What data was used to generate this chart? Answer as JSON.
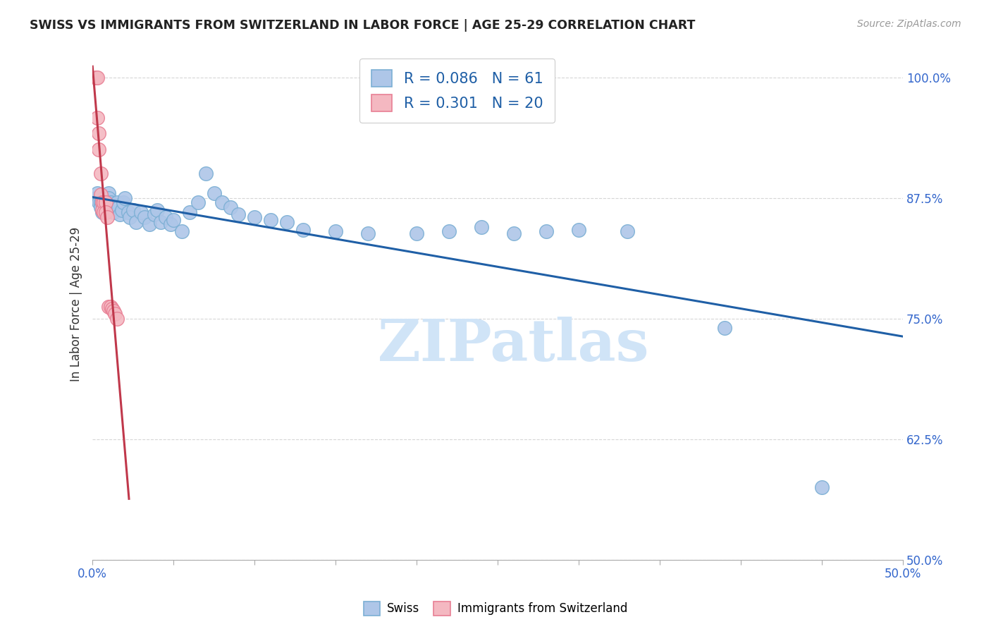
{
  "title": "SWISS VS IMMIGRANTS FROM SWITZERLAND IN LABOR FORCE | AGE 25-29 CORRELATION CHART",
  "source": "Source: ZipAtlas.com",
  "ylabel": "In Labor Force | Age 25-29",
  "xlim": [
    0.0,
    0.5
  ],
  "ylim": [
    0.5,
    1.03
  ],
  "xticks": [
    0.0,
    0.05,
    0.1,
    0.15,
    0.2,
    0.25,
    0.3,
    0.35,
    0.4,
    0.45,
    0.5
  ],
  "xticklabels": [
    "0.0%",
    "",
    "",
    "",
    "",
    "",
    "",
    "",
    "",
    "",
    "50.0%"
  ],
  "yticks": [
    0.5,
    0.625,
    0.75,
    0.875,
    1.0
  ],
  "yticklabels": [
    "50.0%",
    "62.5%",
    "75.0%",
    "87.5%",
    "100.0%"
  ],
  "r_swiss": 0.086,
  "n_swiss": 61,
  "r_immigrants": 0.301,
  "n_immigrants": 20,
  "swiss_color": "#aec6e8",
  "immigrant_color": "#f4b8c1",
  "swiss_edge_color": "#7bafd4",
  "immigrant_edge_color": "#e87f94",
  "trend_swiss_color": "#1f5fa6",
  "trend_immigrant_color": "#c0384b",
  "legend_color": "#1f5fa6",
  "swiss_x": [
    0.002,
    0.003,
    0.004,
    0.005,
    0.005,
    0.006,
    0.006,
    0.007,
    0.007,
    0.008,
    0.008,
    0.009,
    0.009,
    0.01,
    0.01,
    0.011,
    0.012,
    0.013,
    0.014,
    0.015,
    0.016,
    0.017,
    0.018,
    0.019,
    0.02,
    0.022,
    0.023,
    0.025,
    0.027,
    0.03,
    0.032,
    0.035,
    0.038,
    0.04,
    0.042,
    0.045,
    0.048,
    0.05,
    0.055,
    0.06,
    0.065,
    0.07,
    0.075,
    0.08,
    0.085,
    0.09,
    0.1,
    0.11,
    0.12,
    0.13,
    0.15,
    0.17,
    0.2,
    0.22,
    0.24,
    0.26,
    0.28,
    0.3,
    0.33,
    0.39,
    0.45
  ],
  "swiss_y": [
    0.875,
    0.88,
    0.87,
    0.87,
    0.865,
    0.86,
    0.87,
    0.875,
    0.868,
    0.862,
    0.87,
    0.865,
    0.872,
    0.88,
    0.875,
    0.87,
    0.865,
    0.86,
    0.868,
    0.87,
    0.865,
    0.858,
    0.862,
    0.87,
    0.875,
    0.86,
    0.855,
    0.862,
    0.85,
    0.86,
    0.855,
    0.848,
    0.858,
    0.862,
    0.85,
    0.855,
    0.848,
    0.852,
    0.84,
    0.86,
    0.87,
    0.9,
    0.88,
    0.87,
    0.865,
    0.858,
    0.855,
    0.852,
    0.85,
    0.842,
    0.84,
    0.838,
    0.838,
    0.84,
    0.845,
    0.838,
    0.84,
    0.842,
    0.84,
    0.74,
    0.575
  ],
  "immigrant_x": [
    0.002,
    0.003,
    0.003,
    0.004,
    0.004,
    0.005,
    0.005,
    0.006,
    0.006,
    0.007,
    0.007,
    0.008,
    0.008,
    0.009,
    0.01,
    0.011,
    0.012,
    0.013,
    0.014,
    0.015
  ],
  "immigrant_y": [
    1.0,
    1.0,
    0.958,
    0.942,
    0.925,
    0.9,
    0.878,
    0.87,
    0.862,
    0.87,
    0.86,
    0.87,
    0.86,
    0.855,
    0.762,
    0.762,
    0.76,
    0.758,
    0.755,
    0.75
  ],
  "background_color": "#ffffff",
  "grid_color": "#cccccc",
  "watermark_text": "ZIPatlas",
  "watermark_color": "#d0e4f7"
}
